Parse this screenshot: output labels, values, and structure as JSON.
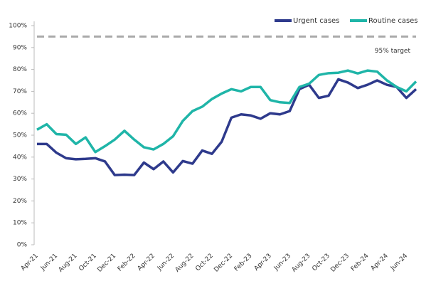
{
  "chart_data": {
    "type": "line",
    "categories": [
      "Apr-21",
      null,
      "Jun-21",
      null,
      "Aug-21",
      null,
      "Oct-21",
      null,
      "Dec-21",
      null,
      "Feb-22",
      null,
      "Apr-22",
      null,
      "Jun-22",
      null,
      "Aug-22",
      null,
      "Oct-22",
      null,
      "Dec-22",
      null,
      "Feb-23",
      null,
      "Apr-23",
      null,
      "Jun-23",
      null,
      "Aug-23",
      null,
      "Oct-23",
      null,
      "Dec-23",
      null,
      "Feb-24",
      null,
      "Apr-24",
      null,
      "Jun-24",
      null
    ],
    "series": [
      {
        "name": "Urgent cases",
        "color": "#2e3a8c",
        "values": [
          46,
          46,
          42,
          39.5,
          39,
          39.2,
          39.5,
          38,
          31.8,
          32,
          31.8,
          37.5,
          34.5,
          38,
          33,
          38.2,
          37,
          43,
          41.5,
          47,
          58,
          59.5,
          59,
          57.5,
          60,
          59.5,
          61,
          71,
          73,
          67,
          68,
          75.5,
          74,
          71.5,
          73,
          75,
          73,
          72,
          67,
          71
        ]
      },
      {
        "name": "Routine cases",
        "color": "#1fb5a8",
        "values": [
          52.5,
          55,
          50.5,
          50.2,
          46,
          49,
          42.3,
          45,
          48,
          52,
          48,
          44.5,
          43.5,
          46,
          49.5,
          56.5,
          61,
          63,
          66.5,
          69,
          71,
          70,
          72,
          72,
          66,
          65,
          64.7,
          72,
          73.5,
          77.5,
          78.3,
          78.5,
          79.5,
          78.2,
          79.5,
          79,
          75,
          72,
          70,
          74.5
        ]
      }
    ],
    "target": {
      "value": 95,
      "label": "95% target",
      "color": "#aaaaaa"
    },
    "ylim": [
      0,
      100
    ],
    "yticks": [
      {
        "value": 0,
        "label": "0%"
      },
      {
        "value": 10,
        "label": "10%"
      },
      {
        "value": 20,
        "label": "20%"
      },
      {
        "value": 30,
        "label": "30%"
      },
      {
        "value": 40,
        "label": "40%"
      },
      {
        "value": 50,
        "label": "50%"
      },
      {
        "value": 60,
        "label": "60%"
      },
      {
        "value": 70,
        "label": "70%"
      },
      {
        "value": 80,
        "label": "80%"
      },
      {
        "value": 90,
        "label": "90%"
      },
      {
        "value": 100,
        "label": "100%"
      }
    ],
    "grid": false,
    "legend": "top-right"
  }
}
